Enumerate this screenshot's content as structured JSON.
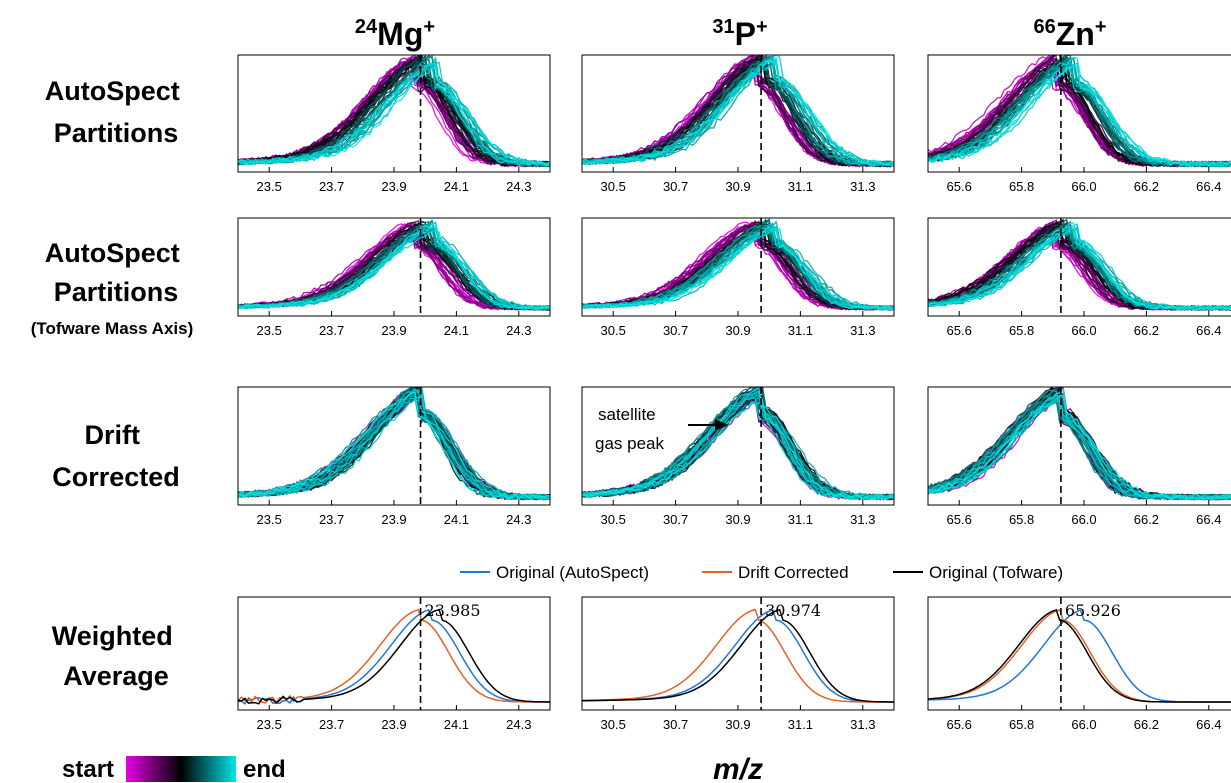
{
  "colors": {
    "start": "#e600e6",
    "mid": "#000000",
    "end": "#00e6e6",
    "autospect": "#1f77d4",
    "drift": "#e0632a",
    "tofware": "#000000"
  },
  "columns": [
    {
      "pre": "24",
      "el": "Mg",
      "post": "+"
    },
    {
      "pre": "31",
      "el": "P",
      "post": "+"
    },
    {
      "pre": "66",
      "el": "Zn",
      "post": "+"
    }
  ],
  "rows": [
    {
      "lines": [
        "AutoSpect",
        "Partitions"
      ],
      "sub": ""
    },
    {
      "lines": [
        "AutoSpect",
        "Partitions"
      ],
      "sub": "(Tofware Mass Axis)"
    },
    {
      "lines": [
        "Drift",
        "Corrected"
      ],
      "sub": ""
    },
    {
      "lines": [
        "Weighted",
        "Average"
      ],
      "sub": ""
    }
  ],
  "legend": {
    "autospect": "Original (AutoSpect)",
    "drift": "Drift Corrected",
    "tofware": "Original (Tofware)"
  },
  "colorbar": {
    "start": "start",
    "end": "end"
  },
  "xlabel": "m/z",
  "annotation": {
    "line1": "satellite",
    "line2": "gas peak"
  },
  "chart_data": [
    {
      "type": "line",
      "row": "AutoSpect Partitions",
      "column": "24Mg+",
      "xlim": [
        23.4,
        24.4
      ],
      "xticks": [
        "23.5",
        "23.7",
        "23.9",
        "24.1",
        "24.3"
      ],
      "dashed_x": 23.985,
      "series": [
        {
          "name": "start",
          "peak": 24.0
        },
        {
          "name": "end",
          "peak": 24.05
        }
      ]
    },
    {
      "type": "line",
      "row": "AutoSpect Partitions",
      "column": "31P+",
      "xlim": [
        30.4,
        31.4
      ],
      "xticks": [
        "30.5",
        "30.7",
        "30.9",
        "31.1",
        "31.3"
      ],
      "dashed_x": 30.974,
      "series": [
        {
          "name": "start",
          "peak": 30.95
        },
        {
          "name": "end",
          "peak": 31.0
        }
      ]
    },
    {
      "type": "line",
      "row": "AutoSpect Partitions",
      "column": "66Zn+",
      "xlim": [
        65.5,
        66.5
      ],
      "xticks": [
        "65.6",
        "65.8",
        "66.0",
        "66.2",
        "66.4"
      ],
      "dashed_x": 65.926,
      "series": [
        {
          "name": "start",
          "peak": 65.9
        },
        {
          "name": "end",
          "peak": 66.0
        }
      ]
    },
    {
      "type": "line",
      "row": "AutoSpect Partitions (Tofware Mass Axis)",
      "column": "24Mg+",
      "xlim": [
        23.4,
        24.4
      ],
      "xticks": [
        "23.5",
        "23.7",
        "23.9",
        "24.1",
        "24.3"
      ],
      "dashed_x": 23.985
    },
    {
      "type": "line",
      "row": "AutoSpect Partitions (Tofware Mass Axis)",
      "column": "31P+",
      "xlim": [
        30.4,
        31.4
      ],
      "xticks": [
        "30.5",
        "30.7",
        "30.9",
        "31.1",
        "31.3"
      ],
      "dashed_x": 30.974
    },
    {
      "type": "line",
      "row": "AutoSpect Partitions (Tofware Mass Axis)",
      "column": "66Zn+",
      "xlim": [
        65.5,
        66.5
      ],
      "xticks": [
        "65.6",
        "65.8",
        "66.0",
        "66.2",
        "66.4"
      ],
      "dashed_x": 65.926
    },
    {
      "type": "line",
      "row": "Drift Corrected",
      "column": "24Mg+",
      "xlim": [
        23.4,
        24.4
      ],
      "xticks": [
        "23.5",
        "23.7",
        "23.9",
        "24.1",
        "24.3"
      ],
      "dashed_x": 23.985
    },
    {
      "type": "line",
      "row": "Drift Corrected",
      "column": "31P+",
      "xlim": [
        30.4,
        31.4
      ],
      "xticks": [
        "30.5",
        "30.7",
        "30.9",
        "31.1",
        "31.3"
      ],
      "dashed_x": 30.974
    },
    {
      "type": "line",
      "row": "Drift Corrected",
      "column": "66Zn+",
      "xlim": [
        65.5,
        66.5
      ],
      "xticks": [
        "65.6",
        "65.8",
        "66.0",
        "66.2",
        "66.4"
      ],
      "dashed_x": 65.926
    },
    {
      "type": "line",
      "row": "Weighted Average",
      "column": "24Mg+",
      "xlim": [
        23.4,
        24.4
      ],
      "xticks": [
        "23.5",
        "23.7",
        "23.9",
        "24.1",
        "24.3"
      ],
      "dashed_x": 23.985,
      "peak_label": "23.985",
      "series": [
        {
          "name": "Original (AutoSpect)",
          "peak": 24.02
        },
        {
          "name": "Drift Corrected",
          "peak": 23.985
        },
        {
          "name": "Original (Tofware)",
          "peak": 24.05
        }
      ]
    },
    {
      "type": "line",
      "row": "Weighted Average",
      "column": "31P+",
      "xlim": [
        30.4,
        31.4
      ],
      "xticks": [
        "30.5",
        "30.7",
        "30.9",
        "31.1",
        "31.3"
      ],
      "dashed_x": 30.974,
      "peak_label": "30.974",
      "series": [
        {
          "name": "Original (AutoSpect)",
          "peak": 31.02
        },
        {
          "name": "Drift Corrected",
          "peak": 30.96
        },
        {
          "name": "Original (Tofware)",
          "peak": 31.04
        }
      ]
    },
    {
      "type": "line",
      "row": "Weighted Average",
      "column": "66Zn+",
      "xlim": [
        65.5,
        66.5
      ],
      "xticks": [
        "65.6",
        "65.8",
        "66.0",
        "66.2",
        "66.4"
      ],
      "dashed_x": 65.926,
      "peak_label": "65.926",
      "series": [
        {
          "name": "Original (AutoSpect)",
          "peak": 66.0
        },
        {
          "name": "Drift Corrected",
          "peak": 65.93
        },
        {
          "name": "Original (Tofware)",
          "peak": 65.92
        }
      ]
    }
  ]
}
